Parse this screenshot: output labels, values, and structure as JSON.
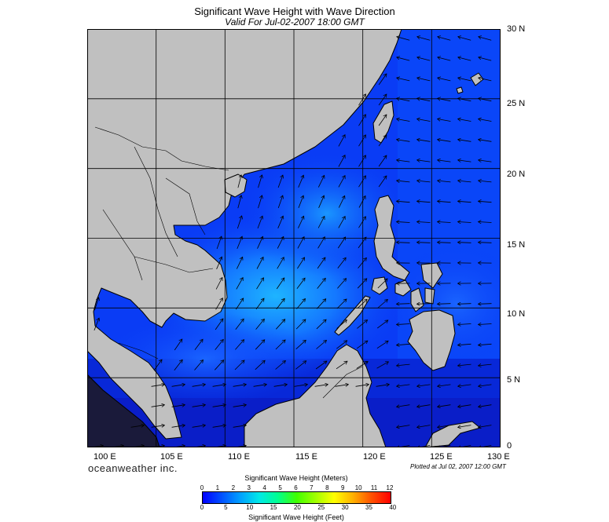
{
  "header": {
    "title": "Significant Wave Height with Wave Direction",
    "subtitle": "Valid For Jul-02-2007 18:00 GMT"
  },
  "map": {
    "lon_min": 100,
    "lon_max": 130,
    "lat_min": 0,
    "lat_max": 30,
    "lat_labels": [
      "30 N",
      "25 N",
      "20 N",
      "15 N",
      "10 N",
      "5 N",
      "0"
    ],
    "lon_labels": [
      "100 E",
      "105 E",
      "110 E",
      "115 E",
      "120 E",
      "125 E",
      "130 E"
    ],
    "land_color": "#c0c0c0",
    "sea_color": "#0a28f0"
  },
  "footer": {
    "brand": "oceanweather inc.",
    "plotted": "Plotted at Jul 02, 2007 12:00 GMT"
  },
  "colorbar": {
    "title_meters": "Significant Wave Height (Meters)",
    "title_feet": "Significant Wave Height (Feet)",
    "meter_ticks": [
      "0",
      "1",
      "2",
      "3",
      "4",
      "5",
      "6",
      "7",
      "8",
      "9",
      "10",
      "11",
      "12"
    ],
    "feet_ticks": [
      "0",
      "5",
      "10",
      "15",
      "20",
      "25",
      "30",
      "35",
      "40"
    ]
  }
}
